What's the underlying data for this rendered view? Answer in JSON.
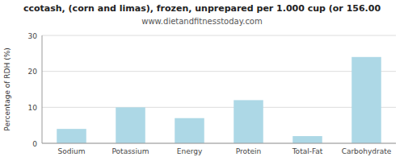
{
  "chart_data": {
    "type": "bar",
    "title": "ccotash, (corn and limas), frozen, unprepared per 1.000 cup (or 156.00",
    "subtitle": "www.dietandfitnesstoday.com",
    "categories": [
      "Sodium",
      "Potassium",
      "Energy",
      "Protein",
      "Total-Fat",
      "Carbohydrate"
    ],
    "values": [
      4.0,
      10.0,
      7.0,
      12.0,
      2.0,
      24.0
    ],
    "color": "#add8e6",
    "ylabel": "Percentage of RDH (%)",
    "ylim": [
      0,
      30
    ],
    "yticks": [
      0,
      10,
      20,
      30
    ],
    "grid": true
  }
}
